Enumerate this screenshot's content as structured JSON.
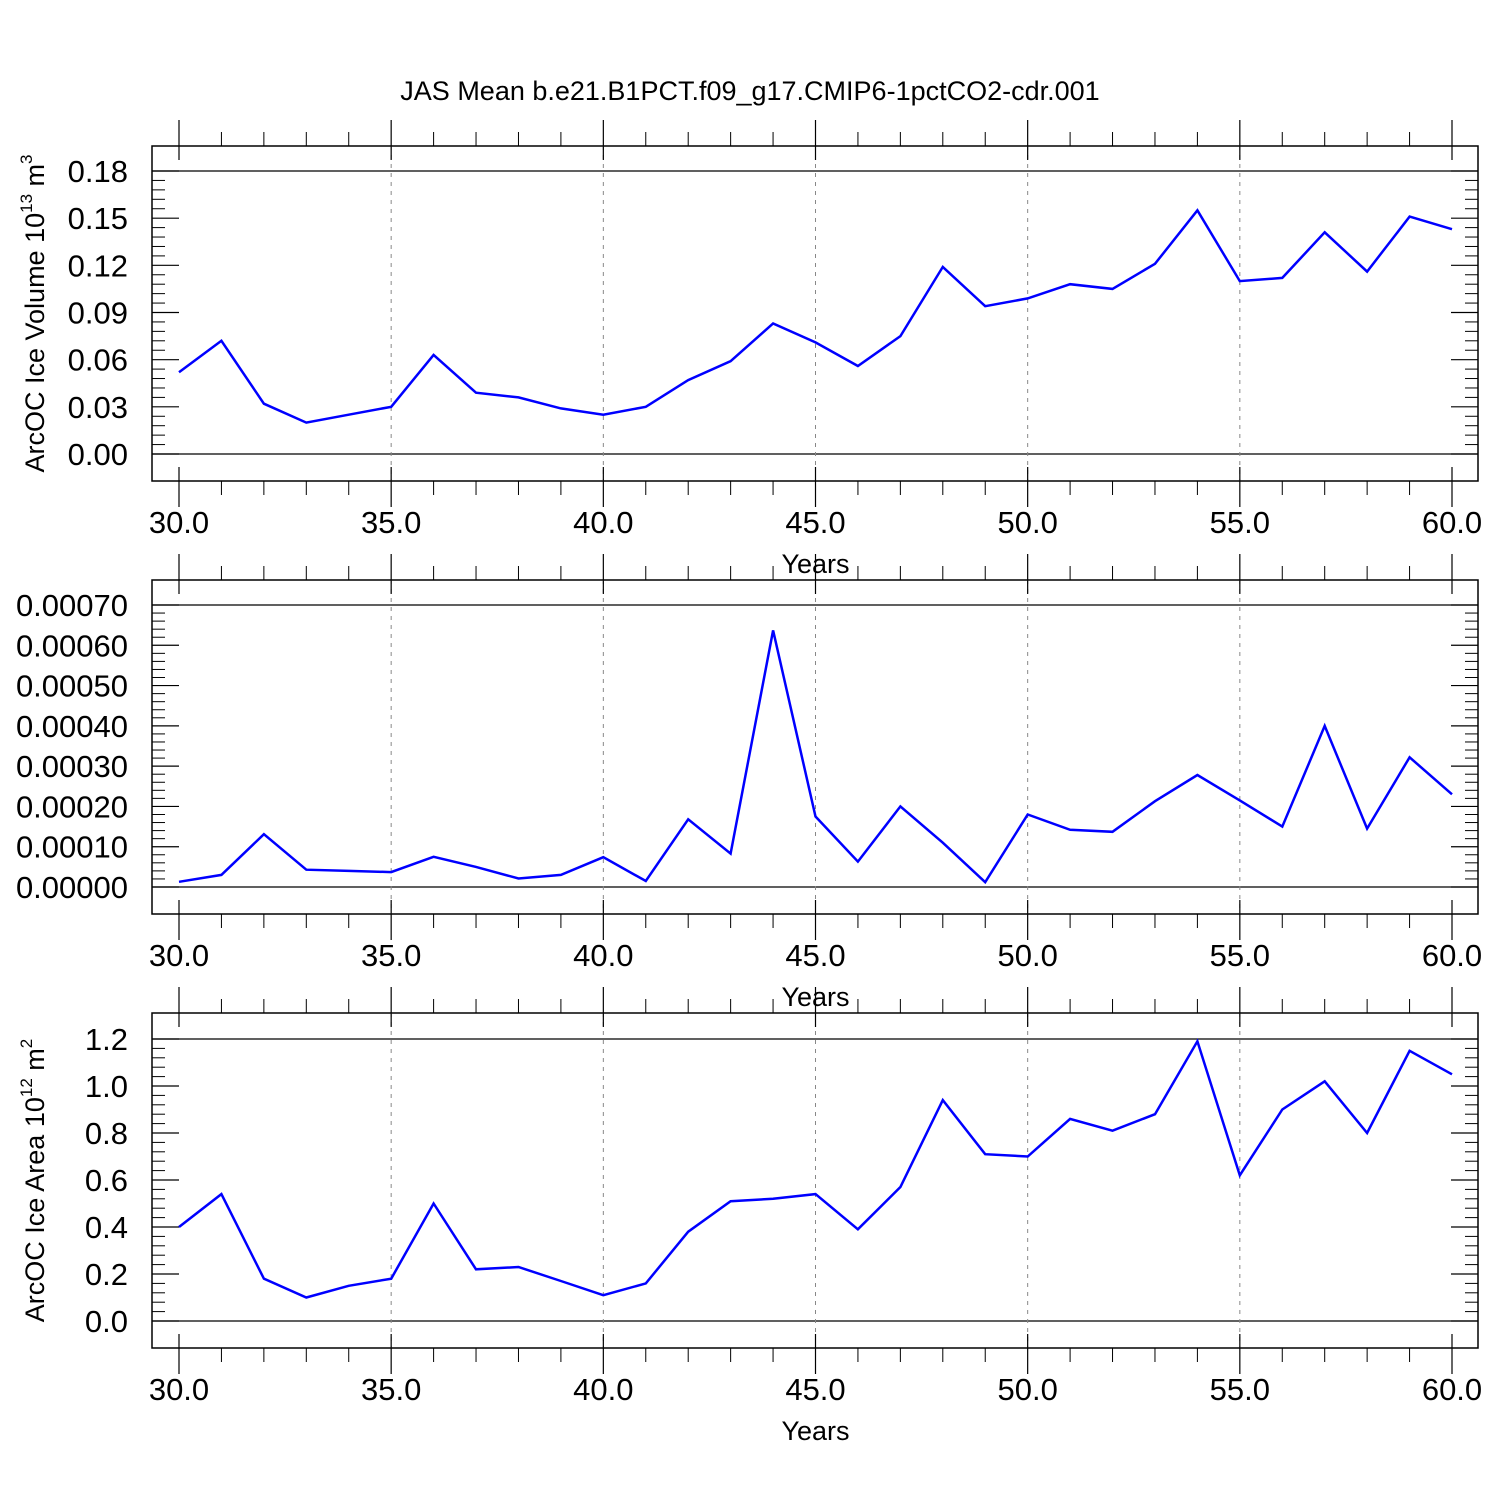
{
  "title": "JAS Mean b.e21.B1PCT.f09_g17.CMIP6-1pctCO2-cdr.001",
  "chart_data": [
    {
      "type": "line",
      "ylabel": "ArcOC Ice Volume 10",
      "ylabel_sup": "13",
      "ylabel_unit": " m",
      "ylabel_unit_sup": "3",
      "xlabel": "Years",
      "xlim": [
        30,
        60
      ],
      "ylim": [
        0,
        0.18
      ],
      "yticks": [
        "0.00",
        "0.03",
        "0.06",
        "0.09",
        "0.12",
        "0.15",
        "0.18"
      ],
      "xticks": [
        "30.0",
        "35.0",
        "40.0",
        "45.0",
        "50.0",
        "55.0",
        "60.0"
      ],
      "series": [
        {
          "color": "#0000ff",
          "x": [
            30,
            31,
            32,
            33,
            34,
            35,
            36,
            37,
            38,
            39,
            40,
            41,
            42,
            43,
            44,
            45,
            46,
            47,
            48,
            49,
            50,
            51,
            52,
            53,
            54,
            55,
            56,
            57,
            58,
            59,
            60
          ],
          "values": [
            0.052,
            0.072,
            0.032,
            0.02,
            0.025,
            0.03,
            0.063,
            0.039,
            0.036,
            0.029,
            0.025,
            0.03,
            0.047,
            0.059,
            0.083,
            0.071,
            0.056,
            0.075,
            0.119,
            0.094,
            0.099,
            0.108,
            0.105,
            0.121,
            0.155,
            0.11,
            0.112,
            0.141,
            0.116,
            0.151,
            0.143
          ]
        }
      ],
      "grid": "vertical dashed at major x ticks"
    },
    {
      "type": "line",
      "ylabel": "",
      "xlabel": "Years",
      "xlim": [
        30,
        60
      ],
      "ylim": [
        0,
        0.0007
      ],
      "yticks": [
        "0.00000",
        "0.00010",
        "0.00020",
        "0.00030",
        "0.00040",
        "0.00050",
        "0.00060",
        "0.00070"
      ],
      "xticks": [
        "30.0",
        "35.0",
        "40.0",
        "45.0",
        "50.0",
        "55.0",
        "60.0"
      ],
      "series": [
        {
          "color": "#0000ff",
          "x": [
            30,
            31,
            32,
            33,
            34,
            35,
            36,
            37,
            38,
            39,
            40,
            41,
            42,
            43,
            44,
            45,
            46,
            47,
            48,
            49,
            50,
            51,
            52,
            53,
            54,
            55,
            56,
            57,
            58,
            59,
            60
          ],
          "values": [
            1.3e-05,
            3e-05,
            0.000131,
            4.3e-05,
            4e-05,
            3.7e-05,
            7.5e-05,
            5e-05,
            2.1e-05,
            3e-05,
            7.4e-05,
            1.5e-05,
            0.000168,
            8.3e-05,
            0.000637,
            0.000175,
            6.3e-05,
            0.0002,
            0.00011,
            1.2e-05,
            0.00018,
            0.000142,
            0.000137,
            0.000213,
            0.000278,
            0.000215,
            0.00015,
            0.0004,
            0.000145,
            0.000322,
            0.00023
          ]
        }
      ],
      "grid": "vertical dashed at major x ticks"
    },
    {
      "type": "line",
      "ylabel": "ArcOC Ice Area 10",
      "ylabel_sup": "12",
      "ylabel_unit": " m",
      "ylabel_unit_sup": "2",
      "xlabel": "Years",
      "xlim": [
        30,
        60
      ],
      "ylim": [
        0,
        1.2
      ],
      "yticks": [
        "0.0",
        "0.2",
        "0.4",
        "0.6",
        "0.8",
        "1.0",
        "1.2"
      ],
      "xticks": [
        "30.0",
        "35.0",
        "40.0",
        "45.0",
        "50.0",
        "55.0",
        "60.0"
      ],
      "series": [
        {
          "color": "#0000ff",
          "x": [
            30,
            31,
            32,
            33,
            34,
            35,
            36,
            37,
            38,
            39,
            40,
            41,
            42,
            43,
            44,
            45,
            46,
            47,
            48,
            49,
            50,
            51,
            52,
            53,
            54,
            55,
            56,
            57,
            58,
            59,
            60
          ],
          "values": [
            0.4,
            0.54,
            0.18,
            0.1,
            0.15,
            0.18,
            0.5,
            0.22,
            0.23,
            0.17,
            0.11,
            0.16,
            0.38,
            0.51,
            0.52,
            0.54,
            0.39,
            0.57,
            0.94,
            0.71,
            0.7,
            0.86,
            0.81,
            0.88,
            1.19,
            0.62,
            0.9,
            1.02,
            0.8,
            1.15,
            1.05
          ]
        }
      ],
      "grid": "vertical dashed at major x ticks"
    }
  ]
}
